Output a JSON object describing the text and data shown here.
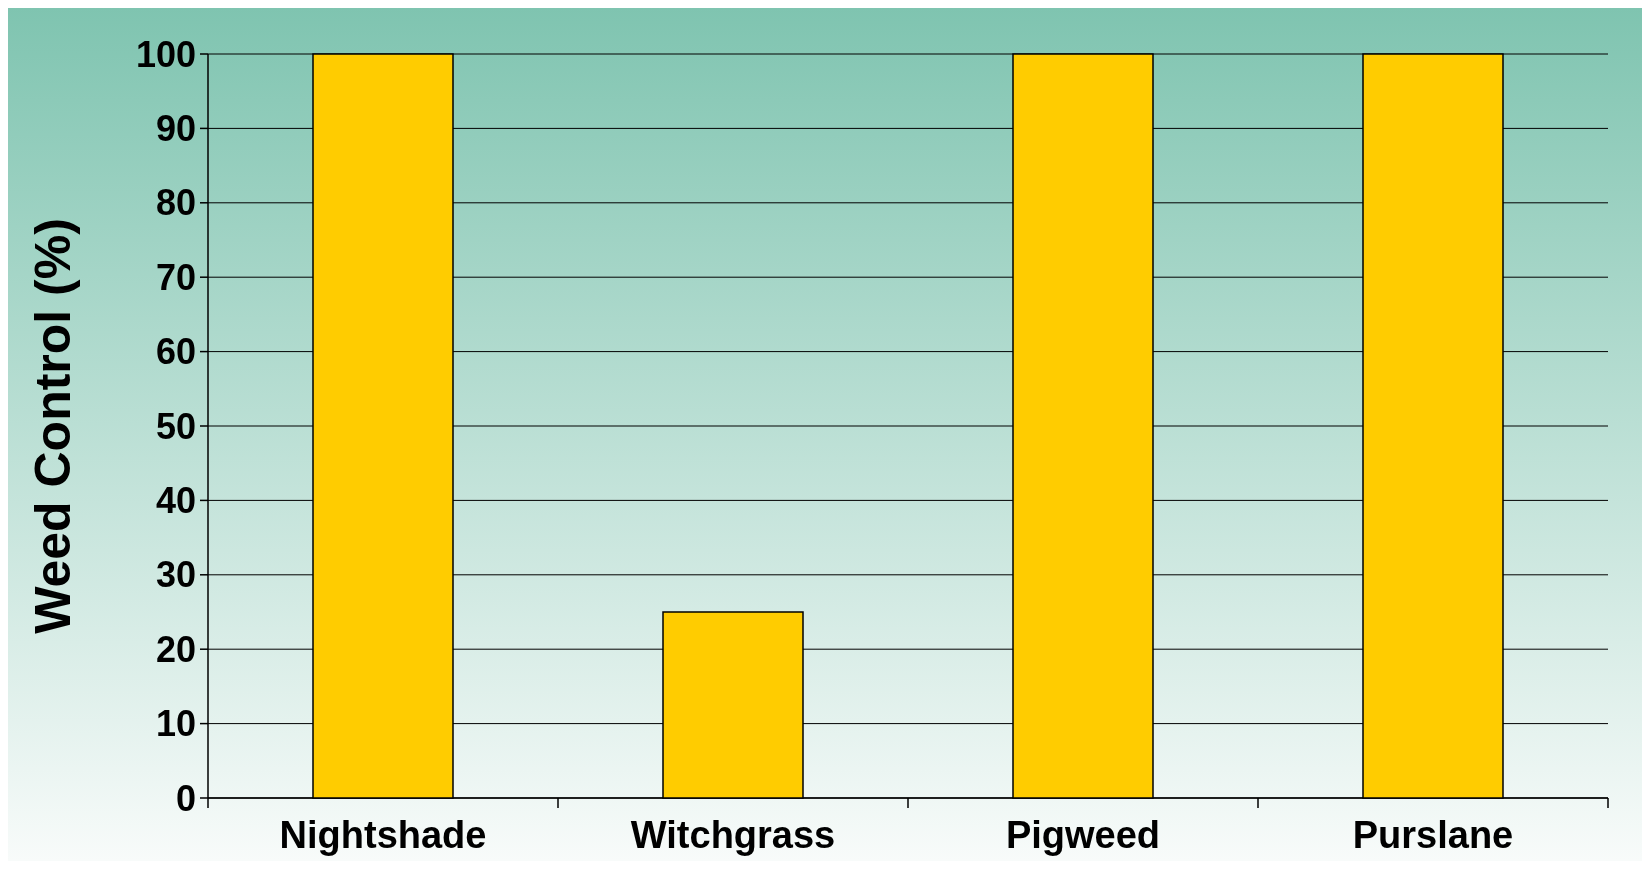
{
  "chart_data": {
    "type": "bar",
    "ylabel": "Weed Control (%)",
    "categories": [
      "Nightshade",
      "Witchgrass",
      "Pigweed",
      "Purslane"
    ],
    "values": [
      100,
      25,
      100,
      100
    ],
    "color": "#ffcc00",
    "ylim": [
      0,
      100
    ],
    "yticks": [
      0,
      10,
      20,
      30,
      40,
      50,
      60,
      70,
      80,
      90,
      100
    ],
    "grid": "y"
  }
}
